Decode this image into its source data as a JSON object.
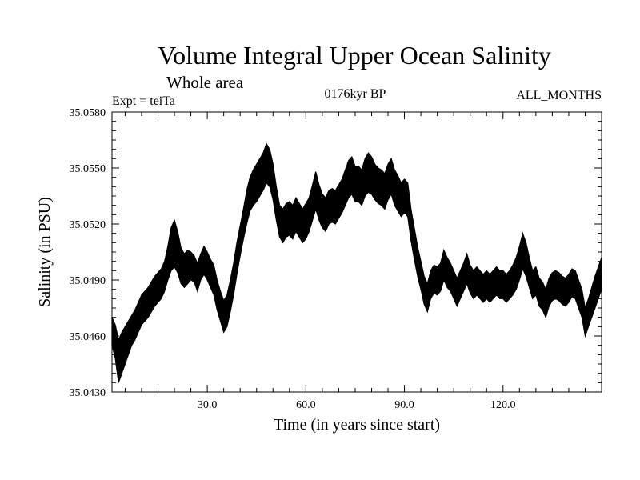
{
  "chart_data": {
    "type": "line",
    "title": "Volume Integral Upper Ocean Salinity",
    "subtitle": "Whole area",
    "experiment_label": "Expt = teiTa",
    "period_label": "0176kyr BP",
    "months_label": "ALL_MONTHS",
    "xlabel": "Time (in years since start)",
    "ylabel": "Salinity (in PSU)",
    "xlim": [
      1,
      150
    ],
    "ylim": [
      35.043,
      35.058
    ],
    "x_ticks": [
      30.0,
      60.0,
      90.0,
      120.0
    ],
    "x_tick_labels": [
      "30.0",
      "60.0",
      "90.0",
      "120.0"
    ],
    "y_ticks": [
      35.043,
      35.046,
      35.049,
      35.052,
      35.055,
      35.058
    ],
    "y_tick_labels": [
      "35.0430",
      "35.0460",
      "35.0490",
      "35.0520",
      "35.0550",
      "35.0580"
    ],
    "series": [
      {
        "name": "Salinity",
        "x": [
          1,
          2,
          3,
          4,
          5,
          6,
          7,
          8,
          9,
          10,
          11,
          12,
          13,
          14,
          15,
          16,
          17,
          18,
          19,
          20,
          21,
          22,
          23,
          24,
          25,
          26,
          27,
          28,
          29,
          30,
          31,
          32,
          33,
          34,
          35,
          36,
          37,
          38,
          39,
          40,
          41,
          42,
          43,
          44,
          45,
          46,
          47,
          48,
          49,
          50,
          51,
          52,
          53,
          54,
          55,
          56,
          57,
          58,
          59,
          60,
          61,
          62,
          63,
          64,
          65,
          66,
          67,
          68,
          69,
          70,
          71,
          72,
          73,
          74,
          75,
          76,
          77,
          78,
          79,
          80,
          81,
          82,
          83,
          84,
          85,
          86,
          87,
          88,
          89,
          90,
          91,
          92,
          93,
          94,
          95,
          96,
          97,
          98,
          99,
          100,
          101,
          102,
          103,
          104,
          105,
          106,
          107,
          108,
          109,
          110,
          111,
          112,
          113,
          114,
          115,
          116,
          117,
          118,
          119,
          120,
          121,
          122,
          123,
          124,
          125,
          126,
          127,
          128,
          129,
          130,
          131,
          132,
          133,
          134,
          135,
          136,
          137,
          138,
          139,
          140,
          141,
          142,
          143,
          144,
          145,
          146,
          147,
          148,
          149,
          150
        ],
        "min": [
          35.0455,
          35.0448,
          35.0435,
          35.044,
          35.0445,
          35.045,
          35.0455,
          35.0458,
          35.0462,
          35.0466,
          35.0468,
          35.047,
          35.0473,
          35.0476,
          35.0478,
          35.048,
          35.0484,
          35.049,
          35.0495,
          35.0497,
          35.0494,
          35.0488,
          35.0486,
          35.0488,
          35.049,
          35.0489,
          35.0484,
          35.049,
          35.0493,
          35.049,
          35.0486,
          35.0482,
          35.0474,
          35.0468,
          35.0462,
          35.0465,
          35.0473,
          35.0482,
          35.0493,
          35.0503,
          35.0512,
          35.052,
          35.0527,
          35.053,
          35.0532,
          35.0535,
          35.0538,
          35.0542,
          35.054,
          35.0533,
          35.0522,
          35.0513,
          35.051,
          35.0513,
          35.0514,
          35.0512,
          35.0516,
          35.0513,
          35.051,
          35.0512,
          35.0516,
          35.0522,
          35.0528,
          35.0522,
          35.0518,
          35.0516,
          35.052,
          35.0521,
          35.052,
          35.0523,
          35.0526,
          35.053,
          35.0534,
          35.0536,
          35.0532,
          35.0532,
          35.053,
          35.0535,
          35.0537,
          35.0536,
          35.0533,
          35.0531,
          35.053,
          35.0528,
          35.0533,
          35.0536,
          35.053,
          35.0527,
          35.0524,
          35.0526,
          35.0524,
          35.0511,
          35.0501,
          35.0492,
          35.0485,
          35.0477,
          35.0473,
          35.048,
          35.0483,
          35.0482,
          35.0484,
          35.049,
          35.0486,
          35.0484,
          35.048,
          35.0476,
          35.048,
          35.0484,
          35.0488,
          35.0483,
          35.048,
          35.0482,
          35.048,
          35.0478,
          35.048,
          35.0478,
          35.048,
          35.0482,
          35.048,
          35.048,
          35.0478,
          35.048,
          35.0482,
          35.0485,
          35.049,
          35.0496,
          35.0492,
          35.0486,
          35.048,
          35.0482,
          35.0476,
          35.0474,
          35.047,
          35.0476,
          35.0479,
          35.048,
          35.0479,
          35.0477,
          35.0476,
          35.0478,
          35.0481,
          35.048,
          35.0475,
          35.047,
          35.046,
          35.0465,
          35.047,
          35.0475,
          35.048,
          35.0485
        ],
        "max": [
          35.047,
          35.0466,
          35.0458,
          35.0462,
          35.0465,
          35.0468,
          35.0471,
          35.0474,
          35.0478,
          35.0482,
          35.0484,
          35.0486,
          35.0489,
          35.0492,
          35.0494,
          35.0496,
          35.05,
          35.0508,
          35.0518,
          35.0522,
          35.0516,
          35.0507,
          35.0504,
          35.0506,
          35.0505,
          35.0503,
          35.0499,
          35.0504,
          35.0508,
          35.0505,
          35.0501,
          35.0498,
          35.049,
          35.0484,
          35.0479,
          35.0482,
          35.049,
          35.0499,
          35.051,
          35.0519,
          35.0528,
          35.0538,
          35.0545,
          35.0549,
          35.0552,
          35.0555,
          35.0558,
          35.0563,
          35.056,
          35.0552,
          35.054,
          35.053,
          35.0528,
          35.0531,
          35.0532,
          35.053,
          35.0534,
          35.0531,
          35.0528,
          35.0531,
          35.0534,
          35.0541,
          35.0548,
          35.0541,
          35.0536,
          35.0534,
          35.0538,
          35.0539,
          35.0538,
          35.0541,
          35.0544,
          35.0549,
          35.0554,
          35.0556,
          35.0551,
          35.0551,
          35.0549,
          35.0555,
          35.0558,
          35.0556,
          35.0552,
          35.055,
          35.0549,
          35.0547,
          35.0552,
          35.0555,
          35.0549,
          35.0546,
          35.0542,
          35.0544,
          35.0542,
          35.0528,
          35.0518,
          35.0508,
          35.05,
          35.0492,
          35.0488,
          35.0495,
          35.0498,
          35.0497,
          35.0499,
          35.0506,
          35.0502,
          35.0499,
          35.0495,
          35.0491,
          35.0495,
          35.0499,
          35.0504,
          35.0498,
          35.0495,
          35.0497,
          35.0495,
          35.0493,
          35.0495,
          35.0493,
          35.0495,
          35.0497,
          35.0495,
          35.0495,
          35.0493,
          35.0495,
          35.0498,
          35.0502,
          35.0508,
          35.0515,
          35.051,
          35.0502,
          35.0495,
          35.0497,
          35.0491,
          35.0489,
          35.0485,
          35.0491,
          35.0494,
          35.0495,
          35.0494,
          35.0492,
          35.0491,
          35.0493,
          35.0496,
          35.0495,
          35.049,
          35.0485,
          35.0475,
          35.048,
          35.0486,
          35.0492,
          35.0497,
          35.0502
        ]
      }
    ]
  }
}
